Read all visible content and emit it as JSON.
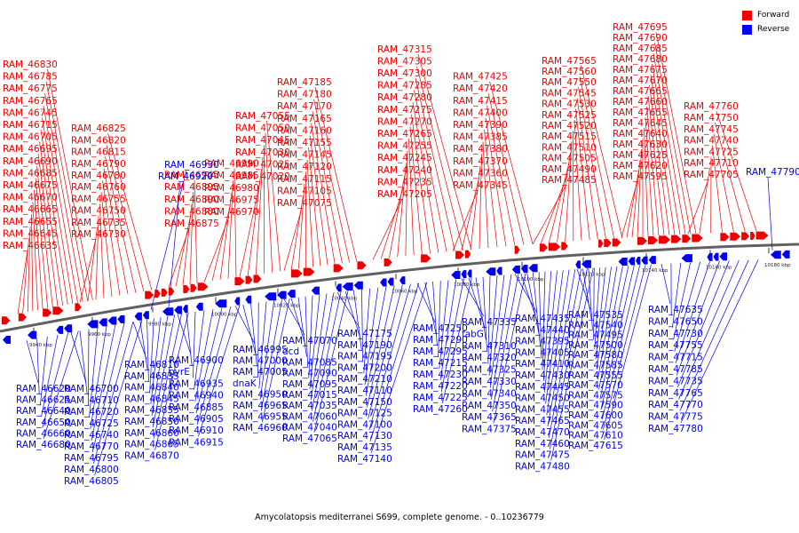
{
  "caption": "Amycolatopsis mediterranei S699, complete genome. - 0..10236779",
  "legend": [
    {
      "label": "Forward",
      "color": "#ee0000"
    },
    {
      "label": "Reverse",
      "color": "#0000ee"
    }
  ],
  "colors": {
    "forward": "#ee0000",
    "reverse": "#0000ee",
    "backbone": "#606060"
  },
  "ticks": [
    "9940 kbp",
    "9960 kbp",
    "9980 kbp",
    "10000 kbp",
    "10020 kbp",
    "10040 kbp",
    "10060 kbp",
    "10080 kbp",
    "10100 kbp",
    "10120 kbp",
    "10140 kbp",
    "10160 kbp",
    "10180 kbp"
  ],
  "forward_labels": [
    "RAM_46635",
    "RAM_46645",
    "RAM_46655",
    "RAM_46665",
    "RAM_46670",
    "RAM_46675",
    "RAM_46685",
    "RAM_46690",
    "RAM_46695",
    "RAM_46705",
    "RAM_46715",
    "RAM_46745",
    "RAM_46765",
    "RAM_46775",
    "RAM_46785",
    "RAM_46830",
    "RAM_46730",
    "RAM_46735",
    "RAM_46750",
    "RAM_46755",
    "RAM_46760",
    "RAM_46780",
    "RAM_46790",
    "RAM_46815",
    "RAM_46820",
    "RAM_46825",
    "RAM_46875",
    "RAM_46880",
    "RAM_46890",
    "RAM_46895",
    "RAM_46945",
    "RAM_46970",
    "RAM_46975",
    "RAM_46980",
    "RAM_46985",
    "RAM_46990",
    "RAM_47020",
    "RAM_47025",
    "RAM_47030",
    "RAM_47045",
    "RAM_47050",
    "RAM_47055",
    "RAM_47075",
    "RAM_47105",
    "RAM_47115",
    "RAM_47120",
    "RAM_47145",
    "RAM_47155",
    "RAM_47160",
    "RAM_47165",
    "RAM_47170",
    "RAM_47180",
    "RAM_47185",
    "RAM_47205",
    "RAM_47235",
    "RAM_47240",
    "RAM_47245",
    "RAM_47255",
    "RAM_47265",
    "RAM_47270",
    "RAM_47275",
    "RAM_47280",
    "RAM_47285",
    "RAM_47300",
    "RAM_47305",
    "RAM_47315",
    "RAM_47345",
    "RAM_47360",
    "RAM_47370",
    "RAM_47380",
    "RAM_47385",
    "RAM_47390",
    "RAM_47400",
    "RAM_47415",
    "RAM_47420",
    "RAM_47425",
    "RAM_47485",
    "RAM_47490",
    "RAM_47505",
    "RAM_47510",
    "RAM_47515",
    "RAM_47520",
    "RAM_47525",
    "RAM_47530",
    "RAM_47545",
    "RAM_47550",
    "RAM_47560",
    "RAM_47565",
    "RAM_47595",
    "RAM_47620",
    "RAM_47625",
    "RAM_47630",
    "RAM_47640",
    "RAM_47645",
    "RAM_47655",
    "RAM_47660",
    "RAM_47665",
    "RAM_47670",
    "RAM_47675",
    "RAM_47680",
    "RAM_47685",
    "RAM_47690",
    "RAM_47695",
    "RAM_47705",
    "RAM_47710",
    "RAM_47725",
    "RAM_47740",
    "RAM_47745",
    "RAM_47750",
    "RAM_47760"
  ],
  "reverse_top_labels": [
    "RAM_46930",
    "RAM_46920",
    "RAM_47790"
  ],
  "reverse_labels": [
    "RAM_46620",
    "RAM_46625",
    "RAM_46640",
    "RAM_46650",
    "RAM_46660",
    "RAM_46680",
    "RAM_46700",
    "RAM_46710",
    "RAM_46720",
    "RAM_46725",
    "RAM_46740",
    "RAM_46770",
    "RAM_46795",
    "RAM_46800",
    "RAM_46805",
    "RAM_46810",
    "RAM_46835",
    "RAM_46840",
    "RAM_46845",
    "RAM_46855",
    "RAM_46850",
    "RAM_46860",
    "RAM_46865",
    "RAM_46870",
    "RAM_46900",
    "pyrE",
    "RAM_46935",
    "RAM_46940",
    "RAM_46885",
    "RAM_46905",
    "RAM_46910",
    "RAM_46915",
    "RAM_46995",
    "RAM_47000",
    "RAM_47005",
    "dnaK",
    "RAM_46950",
    "RAM_46965",
    "RAM_46955",
    "RAM_46960",
    "RAM_47070",
    "dcd",
    "RAM_47085",
    "RAM_47090",
    "RAM_47095",
    "RAM_47015",
    "RAM_47035",
    "RAM_47060",
    "RAM_47040",
    "RAM_47065",
    "RAM_47175",
    "RAM_47190",
    "RAM_47195",
    "RAM_47200",
    "RAM_47210",
    "RAM_47110",
    "RAM_47150",
    "RAM_47125",
    "RAM_47100",
    "RAM_47130",
    "RAM_47135",
    "RAM_47140",
    "RAM_47250",
    "RAM_47290",
    "RAM_47295",
    "RAM_47215",
    "RAM_47230",
    "RAM_47220",
    "RAM_47225",
    "RAM_47260",
    "RAM_47335",
    "fabG",
    "RAM_47310",
    "RAM_47320",
    "RAM_47325",
    "RAM_47330",
    "RAM_47340",
    "RAM_47350",
    "RAM_47365",
    "RAM_47375",
    "RAM_47435",
    "RAM_47440",
    "RAM_47395",
    "RAM_47405",
    "RAM_47410",
    "RAM_47430",
    "RAM_47445",
    "RAM_47450",
    "RAM_47455",
    "RAM_47465",
    "RAM_47470",
    "RAM_47460",
    "RAM_47475",
    "RAM_47480",
    "RAM_47535",
    "RAM_47540",
    "RAM_47495",
    "RAM_47500",
    "RAM_47580",
    "RAM_47585",
    "RAM_47555",
    "RAM_47570",
    "RAM_47575",
    "RAM_47590",
    "RAM_47600",
    "RAM_47605",
    "RAM_47610",
    "RAM_47615",
    "RAM_47635",
    "RAM_47650",
    "RAM_47730",
    "RAM_47755",
    "RAM_47715",
    "RAM_47785",
    "RAM_47735",
    "RAM_47765",
    "RAM_47770",
    "RAM_47775",
    "RAM_47780"
  ]
}
